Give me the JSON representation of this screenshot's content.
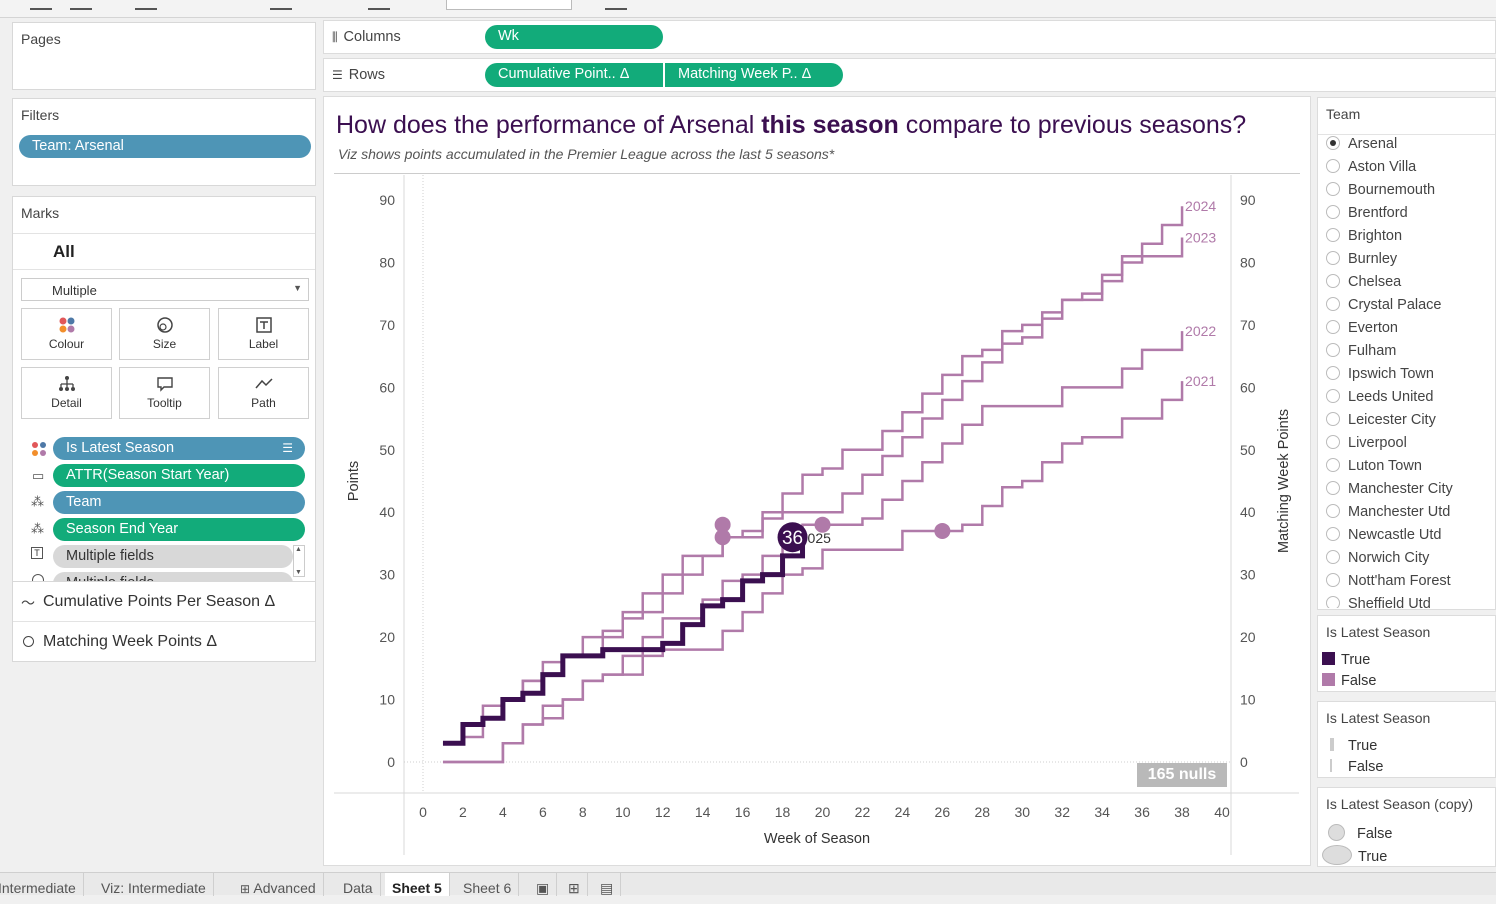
{
  "shelves": {
    "pages_title": "Pages",
    "columns_label": "Columns",
    "rows_label": "Rows",
    "columns_pills": [
      "Wk"
    ],
    "rows_pills": [
      "Cumulative Point..  Δ",
      "Matching Week P..  Δ"
    ]
  },
  "filters": {
    "title": "Filters",
    "pills": [
      "Team: Arsenal"
    ]
  },
  "marks": {
    "title": "Marks",
    "all_label": "All",
    "mark_type": "Multiple",
    "buttons": [
      "Colour",
      "Size",
      "Label",
      "Detail",
      "Tooltip",
      "Path"
    ],
    "fields": [
      {
        "label": "Is Latest Season",
        "icon": "colour-icon",
        "color": "blue"
      },
      {
        "label": "ATTR(Season Start Year)",
        "icon": "tooltip-icon",
        "color": "green"
      },
      {
        "label": "Team",
        "icon": "detail-icon",
        "color": "blue"
      },
      {
        "label": "Season End Year",
        "icon": "detail-icon",
        "color": "green"
      },
      {
        "label": "Multiple fields",
        "icon": "label-icon",
        "color": "grey"
      },
      {
        "label": "Multiple fields",
        "icon": "size-icon",
        "color": "grey"
      }
    ],
    "subcards": [
      "Cumulative Points Per Season Δ",
      "Matching Week Points Δ"
    ]
  },
  "viz": {
    "title_pre": "How does the performance of Arsenal ",
    "title_bold": "this season",
    "title_post": " compare to previous seasons?",
    "subtitle": "Viz shows points accumulated in the Premier League across the last 5 seasons*",
    "nulls_badge": "165 nulls",
    "current_label_value": "36",
    "current_label_suffix": "025"
  },
  "chart_data": {
    "type": "line",
    "xlabel": "Week of Season",
    "ylabel": "Points",
    "ylabel_right": "Matching Week Points",
    "xlim": [
      0,
      40
    ],
    "ylim": [
      0,
      90
    ],
    "x_ticks": [
      0,
      2,
      4,
      6,
      8,
      10,
      12,
      14,
      16,
      18,
      20,
      22,
      24,
      26,
      28,
      30,
      32,
      34,
      36,
      38,
      40
    ],
    "y_ticks": [
      0,
      10,
      20,
      30,
      40,
      50,
      60,
      70,
      80,
      90
    ],
    "series": [
      {
        "name": "2024",
        "latest": false,
        "end_label": "2024",
        "points": [
          [
            1,
            3
          ],
          [
            2,
            4
          ],
          [
            3,
            7
          ],
          [
            4,
            10
          ],
          [
            5,
            13
          ],
          [
            6,
            16
          ],
          [
            7,
            17
          ],
          [
            8,
            17
          ],
          [
            9,
            20
          ],
          [
            10,
            23
          ],
          [
            11,
            24
          ],
          [
            12,
            27
          ],
          [
            13,
            30
          ],
          [
            14,
            33
          ],
          [
            15,
            36
          ],
          [
            16,
            37
          ],
          [
            17,
            40
          ],
          [
            18,
            43
          ],
          [
            19,
            46
          ],
          [
            20,
            47
          ],
          [
            21,
            50
          ],
          [
            22,
            50
          ],
          [
            23,
            53
          ],
          [
            24,
            56
          ],
          [
            25,
            59
          ],
          [
            26,
            62
          ],
          [
            27,
            65
          ],
          [
            28,
            66
          ],
          [
            29,
            69
          ],
          [
            30,
            70
          ],
          [
            31,
            72
          ],
          [
            32,
            74
          ],
          [
            33,
            75
          ],
          [
            34,
            78
          ],
          [
            35,
            81
          ],
          [
            36,
            83
          ],
          [
            37,
            86
          ],
          [
            38,
            89
          ]
        ]
      },
      {
        "name": "2023",
        "latest": false,
        "end_label": "2023",
        "points": [
          [
            1,
            3
          ],
          [
            2,
            6
          ],
          [
            3,
            9
          ],
          [
            4,
            10
          ],
          [
            5,
            13
          ],
          [
            6,
            14
          ],
          [
            7,
            17
          ],
          [
            8,
            20
          ],
          [
            9,
            21
          ],
          [
            10,
            24
          ],
          [
            11,
            27
          ],
          [
            12,
            30
          ],
          [
            13,
            33
          ],
          [
            14,
            33
          ],
          [
            15,
            36
          ],
          [
            16,
            36
          ],
          [
            17,
            39
          ],
          [
            18,
            40
          ],
          [
            19,
            40
          ],
          [
            20,
            40
          ],
          [
            21,
            43
          ],
          [
            22,
            46
          ],
          [
            23,
            49
          ],
          [
            24,
            52
          ],
          [
            25,
            55
          ],
          [
            26,
            58
          ],
          [
            27,
            61
          ],
          [
            28,
            64
          ],
          [
            29,
            67
          ],
          [
            30,
            68
          ],
          [
            31,
            71
          ],
          [
            32,
            74
          ],
          [
            33,
            74
          ],
          [
            34,
            77
          ],
          [
            35,
            80
          ],
          [
            36,
            81
          ],
          [
            37,
            81
          ],
          [
            38,
            84
          ]
        ]
      },
      {
        "name": "2022",
        "latest": false,
        "end_label": "2022",
        "points": [
          [
            1,
            0
          ],
          [
            2,
            0
          ],
          [
            3,
            0
          ],
          [
            4,
            3
          ],
          [
            5,
            6
          ],
          [
            6,
            9
          ],
          [
            7,
            10
          ],
          [
            8,
            13
          ],
          [
            9,
            14
          ],
          [
            10,
            17
          ],
          [
            11,
            20
          ],
          [
            12,
            23
          ],
          [
            13,
            23
          ],
          [
            14,
            26
          ],
          [
            15,
            29
          ],
          [
            16,
            30
          ],
          [
            17,
            33
          ],
          [
            18,
            36
          ],
          [
            19,
            38
          ],
          [
            20,
            38
          ],
          [
            21,
            38
          ],
          [
            22,
            39
          ],
          [
            23,
            42
          ],
          [
            24,
            45
          ],
          [
            25,
            48
          ],
          [
            26,
            51
          ],
          [
            27,
            54
          ],
          [
            28,
            57
          ],
          [
            29,
            57
          ],
          [
            30,
            57
          ],
          [
            31,
            57
          ],
          [
            32,
            60
          ],
          [
            33,
            60
          ],
          [
            34,
            60
          ],
          [
            35,
            63
          ],
          [
            36,
            66
          ],
          [
            37,
            66
          ],
          [
            38,
            69
          ]
        ]
      },
      {
        "name": "2021",
        "latest": false,
        "end_label": "2021",
        "points": [
          [
            1,
            0
          ],
          [
            2,
            0
          ],
          [
            3,
            0
          ],
          [
            4,
            3
          ],
          [
            5,
            6
          ],
          [
            6,
            7
          ],
          [
            7,
            10
          ],
          [
            8,
            13
          ],
          [
            9,
            14
          ],
          [
            10,
            14
          ],
          [
            11,
            17
          ],
          [
            12,
            18
          ],
          [
            13,
            18
          ],
          [
            14,
            18
          ],
          [
            15,
            21
          ],
          [
            16,
            24
          ],
          [
            17,
            27
          ],
          [
            18,
            30
          ],
          [
            19,
            31
          ],
          [
            20,
            34
          ],
          [
            21,
            34
          ],
          [
            22,
            34
          ],
          [
            23,
            34
          ],
          [
            24,
            37
          ],
          [
            25,
            37
          ],
          [
            26,
            37
          ],
          [
            27,
            38
          ],
          [
            28,
            41
          ],
          [
            29,
            44
          ],
          [
            30,
            45
          ],
          [
            31,
            48
          ],
          [
            32,
            51
          ],
          [
            33,
            52
          ],
          [
            34,
            52
          ],
          [
            35,
            55
          ],
          [
            36,
            55
          ],
          [
            37,
            58
          ],
          [
            38,
            61
          ]
        ]
      },
      {
        "name": "2025",
        "latest": true,
        "end_label": "",
        "points": [
          [
            1,
            3
          ],
          [
            2,
            6
          ],
          [
            3,
            7
          ],
          [
            4,
            10
          ],
          [
            5,
            11
          ],
          [
            6,
            14
          ],
          [
            7,
            17
          ],
          [
            8,
            17
          ],
          [
            9,
            18
          ],
          [
            10,
            18
          ],
          [
            11,
            18
          ],
          [
            12,
            19
          ],
          [
            13,
            22
          ],
          [
            14,
            25
          ],
          [
            15,
            26
          ],
          [
            16,
            29
          ],
          [
            17,
            30
          ],
          [
            18,
            33
          ],
          [
            19,
            36
          ]
        ]
      }
    ],
    "match_markers": [
      {
        "x": 15,
        "y": 38,
        "latest": false
      },
      {
        "x": 15,
        "y": 36,
        "latest": false
      },
      {
        "x": 20,
        "y": 38,
        "latest": false
      },
      {
        "x": 26,
        "y": 37,
        "latest": false
      },
      {
        "x": 18.5,
        "y": 36,
        "latest": true
      }
    ],
    "colors": {
      "latest": "#3b0f50",
      "previous": "#b07aa9"
    }
  },
  "team_filter": {
    "title": "Team",
    "selected": "Arsenal",
    "items": [
      "Arsenal",
      "Aston Villa",
      "Bournemouth",
      "Brentford",
      "Brighton",
      "Burnley",
      "Chelsea",
      "Crystal Palace",
      "Everton",
      "Fulham",
      "Ipswich Town",
      "Leeds United",
      "Leicester City",
      "Liverpool",
      "Luton Town",
      "Manchester City",
      "Manchester Utd",
      "Newcastle Utd",
      "Norwich City",
      "Nott'ham Forest",
      "Sheffield Utd"
    ]
  },
  "legends": {
    "colour": {
      "title": "Is Latest Season",
      "items": [
        "True",
        "False"
      ],
      "colors": [
        "#3b0f50",
        "#b07aa9"
      ]
    },
    "size": {
      "title": "Is Latest Season",
      "items": [
        "True",
        "False"
      ]
    },
    "shape": {
      "title": "Is Latest Season (copy)",
      "items": [
        "False",
        "True"
      ]
    }
  },
  "tabs": [
    "Intermediate",
    "Viz: Intermediate",
    "Advanced",
    "Data",
    "Sheet 5",
    "Sheet 6"
  ],
  "active_tab": "Sheet 5"
}
